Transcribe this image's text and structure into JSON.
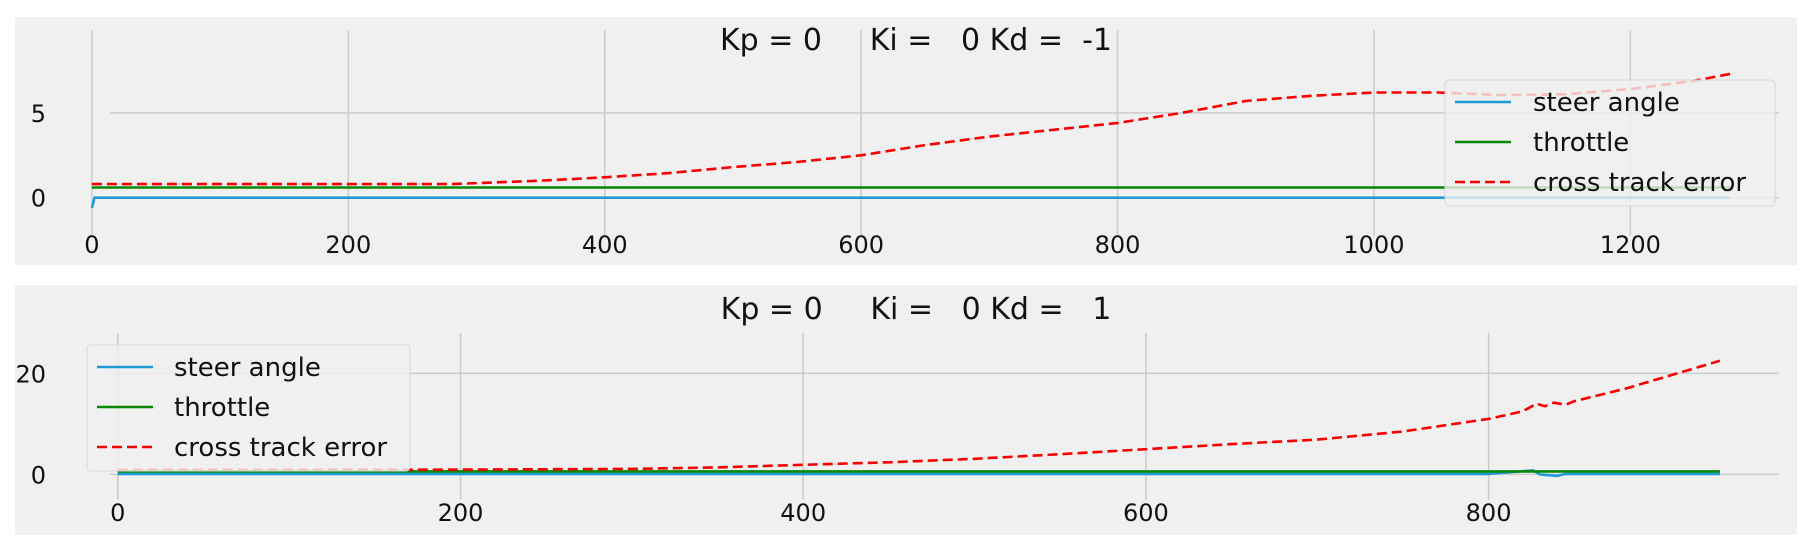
{
  "chart_data": [
    {
      "type": "line",
      "title": "Kp = 0     Ki =   0 Kd =  -1",
      "xlabel": "",
      "ylabel": "",
      "xlim": [
        -60,
        1330
      ],
      "ylim": [
        -1.2,
        8.0
      ],
      "xticks": [
        0,
        200,
        400,
        600,
        800,
        1000,
        1200
      ],
      "yticks": [
        0,
        5
      ],
      "grid": true,
      "legend_position": "right",
      "series": [
        {
          "name": "steer angle",
          "color": "#1f9ad6",
          "style": "solid",
          "points": [
            [
              0,
              -0.6
            ],
            [
              2,
              0.0
            ],
            [
              200,
              0.0
            ],
            [
              400,
              0.0
            ],
            [
              600,
              0.0
            ],
            [
              800,
              0.0
            ],
            [
              1000,
              0.0
            ],
            [
              1200,
              0.0
            ],
            [
              1278,
              0.0
            ]
          ]
        },
        {
          "name": "throttle",
          "color": "#078807",
          "style": "solid",
          "points": [
            [
              0,
              0.6
            ],
            [
              400,
              0.6
            ],
            [
              800,
              0.6
            ],
            [
              1278,
              0.6
            ]
          ]
        },
        {
          "name": "cross track error",
          "color": "#f80000",
          "style": "dashed",
          "points": [
            [
              0,
              0.8
            ],
            [
              100,
              0.8
            ],
            [
              200,
              0.8
            ],
            [
              280,
              0.8
            ],
            [
              350,
              1.0
            ],
            [
              400,
              1.2
            ],
            [
              450,
              1.45
            ],
            [
              500,
              1.8
            ],
            [
              550,
              2.1
            ],
            [
              600,
              2.5
            ],
            [
              650,
              3.1
            ],
            [
              700,
              3.6
            ],
            [
              750,
              4.0
            ],
            [
              800,
              4.4
            ],
            [
              850,
              5.0
            ],
            [
              900,
              5.7
            ],
            [
              950,
              6.0
            ],
            [
              1000,
              6.2
            ],
            [
              1050,
              6.2
            ],
            [
              1100,
              6.05
            ],
            [
              1150,
              6.1
            ],
            [
              1200,
              6.4
            ],
            [
              1250,
              6.9
            ],
            [
              1278,
              7.3
            ]
          ]
        }
      ]
    },
    {
      "type": "line",
      "title": "Kp = 0     Ki =   0 Kd =   1",
      "xlabel": "",
      "ylabel": "",
      "xlim": [
        -60,
        980
      ],
      "ylim": [
        -1.5,
        28.0
      ],
      "xticks": [
        0,
        200,
        400,
        600,
        800
      ],
      "yticks": [
        0,
        20
      ],
      "grid": true,
      "legend_position": "left",
      "series": [
        {
          "name": "steer angle",
          "color": "#1f9ad6",
          "style": "solid",
          "points": [
            [
              0,
              0.1
            ],
            [
              200,
              0.1
            ],
            [
              400,
              0.1
            ],
            [
              600,
              0.1
            ],
            [
              800,
              0.1
            ],
            [
              826,
              0.8
            ],
            [
              830,
              0.0
            ],
            [
              840,
              -0.3
            ],
            [
              845,
              0.1
            ],
            [
              935,
              0.1
            ]
          ]
        },
        {
          "name": "throttle",
          "color": "#078807",
          "style": "solid",
          "points": [
            [
              0,
              0.6
            ],
            [
              300,
              0.6
            ],
            [
              600,
              0.6
            ],
            [
              935,
              0.6
            ]
          ]
        },
        {
          "name": "cross track error",
          "color": "#f80000",
          "style": "dashed",
          "points": [
            [
              0,
              0.9
            ],
            [
              100,
              0.9
            ],
            [
              200,
              0.95
            ],
            [
              300,
              1.1
            ],
            [
              350,
              1.4
            ],
            [
              400,
              1.9
            ],
            [
              450,
              2.4
            ],
            [
              500,
              3.1
            ],
            [
              550,
              4.0
            ],
            [
              600,
              5.0
            ],
            [
              650,
              6.0
            ],
            [
              700,
              6.9
            ],
            [
              750,
              8.5
            ],
            [
              800,
              11.0
            ],
            [
              820,
              12.5
            ],
            [
              828,
              14.0
            ],
            [
              833,
              13.5
            ],
            [
              838,
              14.2
            ],
            [
              845,
              13.8
            ],
            [
              850,
              14.5
            ],
            [
              880,
              17.0
            ],
            [
              900,
              19.0
            ],
            [
              935,
              22.5
            ]
          ]
        }
      ]
    }
  ]
}
